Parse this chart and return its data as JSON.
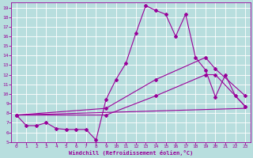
{
  "xlabel": "Windchill (Refroidissement éolien,°C)",
  "background_color": "#b8dede",
  "grid_color": "#d0d0d0",
  "line_color": "#990099",
  "xlim": [
    -0.5,
    23.5
  ],
  "ylim": [
    5,
    19.5
  ],
  "xticks": [
    0,
    1,
    2,
    3,
    4,
    5,
    6,
    7,
    8,
    9,
    10,
    11,
    12,
    13,
    14,
    15,
    16,
    17,
    18,
    19,
    20,
    21,
    22,
    23
  ],
  "yticks": [
    5,
    6,
    7,
    8,
    9,
    10,
    11,
    12,
    13,
    14,
    15,
    16,
    17,
    18,
    19
  ],
  "series1_x": [
    0,
    1,
    2,
    3,
    4,
    5,
    6,
    7,
    8,
    9,
    10,
    11,
    12,
    13,
    14,
    15,
    16,
    17,
    18,
    19,
    20,
    21,
    22,
    23
  ],
  "series1_y": [
    7.8,
    6.7,
    6.7,
    7.0,
    6.4,
    6.3,
    6.3,
    6.3,
    5.2,
    9.4,
    11.5,
    13.2,
    16.3,
    19.2,
    18.7,
    18.3,
    16.0,
    18.3,
    13.8,
    12.5,
    9.7,
    12.0,
    9.8,
    8.7
  ],
  "series2_x": [
    0,
    23
  ],
  "series2_y": [
    7.8,
    8.5
  ],
  "series3_x": [
    0,
    9,
    14,
    19,
    20,
    23
  ],
  "series3_y": [
    7.8,
    8.5,
    11.5,
    13.8,
    12.6,
    9.8
  ],
  "series4_x": [
    0,
    9,
    14,
    19,
    20,
    23
  ],
  "series4_y": [
    7.8,
    7.8,
    9.8,
    12.0,
    12.0,
    8.7
  ]
}
